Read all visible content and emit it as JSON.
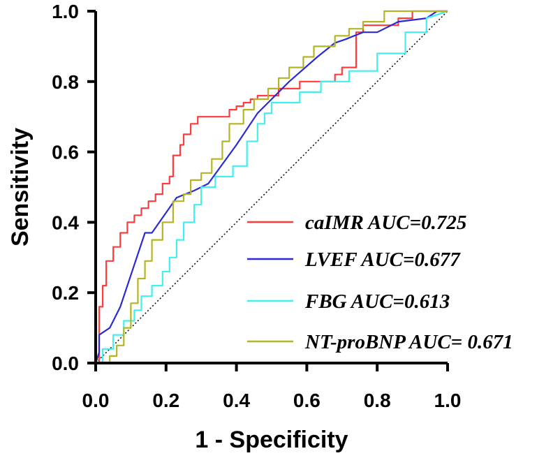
{
  "chart_data": {
    "type": "line",
    "title": "",
    "xlabel": "1 - Specificity",
    "ylabel": "Sensitivity",
    "xlim": [
      0,
      1
    ],
    "ylim": [
      0,
      1
    ],
    "x_ticks": [
      "0.0",
      "0.2",
      "0.4",
      "0.6",
      "0.8",
      "1.0"
    ],
    "y_ticks": [
      "0.0",
      "0.2",
      "0.4",
      "0.6",
      "0.8",
      "1.0"
    ],
    "grid": false,
    "legend_position": "bottom-right",
    "reference_line": {
      "name": "diagonal",
      "x": [
        0,
        1
      ],
      "y": [
        0,
        1
      ],
      "style": "dotted"
    },
    "series": [
      {
        "name": "caIMR AUC=0.725",
        "color": "#ff3b3b",
        "x": [
          0,
          0.01,
          0.01,
          0.02,
          0.02,
          0.03,
          0.03,
          0.05,
          0.05,
          0.07,
          0.07,
          0.09,
          0.09,
          0.11,
          0.11,
          0.13,
          0.13,
          0.15,
          0.15,
          0.17,
          0.17,
          0.19,
          0.19,
          0.21,
          0.21,
          0.22,
          0.22,
          0.24,
          0.24,
          0.25,
          0.25,
          0.27,
          0.27,
          0.29,
          0.29,
          0.38,
          0.38,
          0.4,
          0.4,
          0.42,
          0.42,
          0.44,
          0.44,
          0.46,
          0.46,
          0.52,
          0.52,
          0.58,
          0.58,
          0.68,
          0.68,
          0.7,
          0.7,
          0.74,
          0.74,
          0.76,
          0.76,
          0.86,
          0.86,
          0.9,
          0.9,
          1.0
        ],
        "y": [
          0,
          0,
          0.16,
          0.16,
          0.22,
          0.22,
          0.29,
          0.29,
          0.33,
          0.33,
          0.37,
          0.37,
          0.4,
          0.4,
          0.42,
          0.42,
          0.44,
          0.44,
          0.46,
          0.46,
          0.48,
          0.48,
          0.51,
          0.51,
          0.53,
          0.53,
          0.59,
          0.59,
          0.62,
          0.62,
          0.65,
          0.65,
          0.68,
          0.68,
          0.7,
          0.7,
          0.72,
          0.72,
          0.73,
          0.73,
          0.74,
          0.74,
          0.75,
          0.75,
          0.76,
          0.76,
          0.78,
          0.78,
          0.8,
          0.8,
          0.82,
          0.82,
          0.84,
          0.84,
          0.94,
          0.94,
          0.96,
          0.96,
          0.98,
          0.98,
          1.0,
          1.0
        ]
      },
      {
        "name": "LVEF  AUC=0.677",
        "color": "#2a2ad6",
        "x": [
          0,
          0.01,
          0.01,
          0.04,
          0.07,
          0.14,
          0.16,
          0.23,
          0.28,
          0.32,
          0.4,
          0.46,
          0.55,
          0.63,
          0.68,
          0.71,
          0.76,
          0.8,
          0.86,
          0.94,
          0.97,
          1.0
        ],
        "y": [
          0,
          0.03,
          0.08,
          0.1,
          0.16,
          0.37,
          0.37,
          0.47,
          0.49,
          0.51,
          0.62,
          0.71,
          0.8,
          0.87,
          0.91,
          0.92,
          0.94,
          0.94,
          0.97,
          0.98,
          1.0,
          1.0
        ]
      },
      {
        "name": "FBG  AUC=0.613",
        "color": "#3ef0f0",
        "x": [
          0,
          0.02,
          0.02,
          0.05,
          0.05,
          0.08,
          0.08,
          0.11,
          0.11,
          0.13,
          0.13,
          0.16,
          0.16,
          0.19,
          0.19,
          0.21,
          0.21,
          0.23,
          0.23,
          0.25,
          0.25,
          0.28,
          0.28,
          0.3,
          0.3,
          0.34,
          0.34,
          0.39,
          0.39,
          0.43,
          0.43,
          0.46,
          0.46,
          0.48,
          0.48,
          0.5,
          0.5,
          0.58,
          0.58,
          0.64,
          0.64,
          0.72,
          0.72,
          0.8,
          0.8,
          0.88,
          0.88,
          0.94,
          0.94,
          1.0
        ],
        "y": [
          0,
          0,
          0.04,
          0.04,
          0.08,
          0.08,
          0.12,
          0.12,
          0.15,
          0.15,
          0.19,
          0.19,
          0.22,
          0.22,
          0.26,
          0.26,
          0.3,
          0.3,
          0.35,
          0.35,
          0.4,
          0.4,
          0.45,
          0.45,
          0.5,
          0.5,
          0.53,
          0.53,
          0.56,
          0.56,
          0.63,
          0.63,
          0.68,
          0.68,
          0.71,
          0.71,
          0.74,
          0.74,
          0.77,
          0.77,
          0.8,
          0.8,
          0.83,
          0.83,
          0.88,
          0.88,
          0.94,
          0.94,
          0.98,
          1.0
        ]
      },
      {
        "name": "NT-proBNP AUC= 0.671",
        "color": "#b5b523",
        "x": [
          0,
          0.04,
          0.04,
          0.06,
          0.06,
          0.08,
          0.08,
          0.1,
          0.1,
          0.12,
          0.12,
          0.14,
          0.14,
          0.16,
          0.16,
          0.19,
          0.19,
          0.22,
          0.22,
          0.25,
          0.25,
          0.27,
          0.27,
          0.3,
          0.3,
          0.33,
          0.33,
          0.36,
          0.36,
          0.38,
          0.38,
          0.42,
          0.42,
          0.45,
          0.45,
          0.49,
          0.49,
          0.52,
          0.52,
          0.55,
          0.55,
          0.59,
          0.59,
          0.62,
          0.62,
          0.68,
          0.68,
          0.72,
          0.72,
          0.76,
          0.76,
          0.82,
          0.82,
          0.84,
          0.84,
          0.9,
          0.9,
          1.0
        ],
        "y": [
          0,
          0,
          0.02,
          0.02,
          0.05,
          0.05,
          0.1,
          0.1,
          0.17,
          0.17,
          0.24,
          0.24,
          0.29,
          0.29,
          0.35,
          0.35,
          0.4,
          0.4,
          0.46,
          0.46,
          0.48,
          0.48,
          0.52,
          0.52,
          0.54,
          0.54,
          0.58,
          0.58,
          0.63,
          0.63,
          0.68,
          0.68,
          0.72,
          0.72,
          0.75,
          0.75,
          0.78,
          0.78,
          0.81,
          0.81,
          0.84,
          0.84,
          0.87,
          0.87,
          0.9,
          0.9,
          0.93,
          0.93,
          0.95,
          0.95,
          0.97,
          0.97,
          1.0,
          1.0,
          1.0,
          1.0,
          1.0,
          1.0
        ]
      }
    ]
  }
}
